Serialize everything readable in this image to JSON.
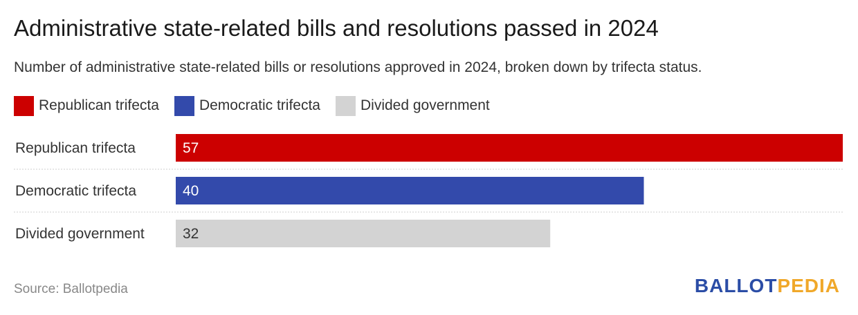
{
  "header": {
    "title": "Administrative state-related bills and resolutions passed in 2024",
    "subtitle": "Number of administrative state-related bills or resolutions approved in 2024, broken down by trifecta status."
  },
  "legend": [
    {
      "label": "Republican trifecta",
      "color": "#cc0000"
    },
    {
      "label": "Democratic trifecta",
      "color": "#334aab"
    },
    {
      "label": "Divided government",
      "color": "#d3d3d3"
    }
  ],
  "chart_data": {
    "type": "bar",
    "orientation": "horizontal",
    "categories": [
      "Republican trifecta",
      "Democratic trifecta",
      "Divided government"
    ],
    "values": [
      57,
      40,
      32
    ],
    "colors": [
      "#cc0000",
      "#334aab",
      "#d3d3d3"
    ],
    "label_colors": [
      "#ffffff",
      "#ffffff",
      "#333333"
    ],
    "xlim": [
      0,
      57
    ],
    "grid": false,
    "legend_position": "top-left",
    "title": "Administrative state-related bills and resolutions passed in 2024"
  },
  "footer": {
    "source": "Source: Ballotpedia",
    "logo_part1": "BALLOT",
    "logo_part2": "PEDIA"
  }
}
